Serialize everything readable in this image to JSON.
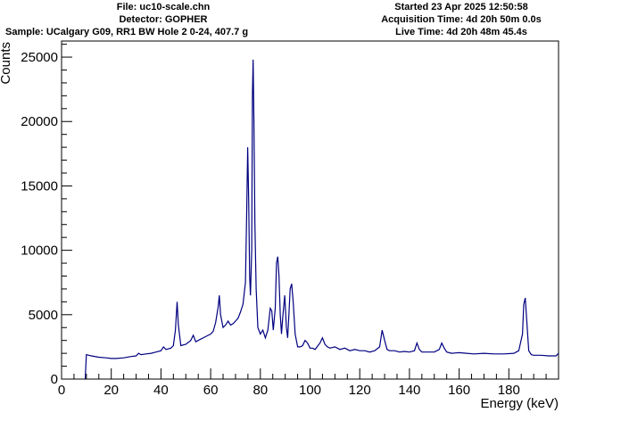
{
  "header": {
    "file": "File: uc10-scale.chn",
    "detector": "Detector: GOPHER",
    "sample": "Sample: UCalgary G09, RR1 BW Hole 2 0-24, 407.7 g",
    "started": "Started 23 Apr 2025 12:50:58",
    "acquisition": "Acquisition Time: 4d 20h 50m 0.0s",
    "live": "Live Time: 4d 20h 48m 45.4s"
  },
  "colors": {
    "series": "#000080",
    "frame": "#000000",
    "background": "#ffffff"
  },
  "chart_data": {
    "type": "line",
    "title": "",
    "xlabel": "Energy (keV)",
    "ylabel": "Counts",
    "xlim": [
      0,
      200
    ],
    "ylim": [
      0,
      26250
    ],
    "grid": false,
    "x_ticks": [
      0,
      20,
      40,
      60,
      80,
      100,
      120,
      140,
      160,
      180
    ],
    "y_ticks": [
      0,
      5000,
      10000,
      15000,
      20000,
      25000
    ],
    "x_tick_labels": [
      "0",
      "20",
      "40",
      "60",
      "80",
      "100",
      "120",
      "140",
      "160",
      "180"
    ],
    "y_tick_labels": [
      "0",
      "5000",
      "10000",
      "15000",
      "20000",
      "25000"
    ],
    "series": [
      {
        "x": [
          9.5,
          10,
          12,
          15,
          18,
          20,
          22,
          25,
          28,
          30,
          31,
          32,
          34,
          36,
          38,
          40,
          41,
          42,
          44,
          45,
          45.8,
          46.5,
          47,
          48,
          50,
          52,
          53,
          54,
          56,
          58,
          60,
          61,
          62,
          63,
          63.5,
          64,
          65,
          66,
          67,
          68,
          69,
          70,
          71,
          72,
          73,
          74,
          74.5,
          74.9,
          75.3,
          75.7,
          76,
          76.5,
          76.8,
          77.1,
          77.4,
          77.8,
          78.3,
          79,
          80,
          81,
          82,
          83,
          84,
          84.6,
          85.2,
          86,
          86.5,
          87,
          87.5,
          88,
          88.5,
          89,
          89.8,
          90.5,
          91,
          91.5,
          92,
          92.6,
          93.2,
          94,
          95,
          96,
          97,
          98,
          99,
          100,
          101,
          102,
          104,
          105,
          106,
          107,
          108,
          110,
          112,
          114,
          116,
          118,
          120,
          122,
          124,
          126,
          128,
          129,
          130,
          131,
          132,
          134,
          136,
          138,
          140,
          142,
          143,
          144,
          145,
          148,
          150,
          152,
          153,
          154,
          155,
          157,
          160,
          163,
          166,
          170,
          174,
          178,
          182,
          184,
          185.5,
          186,
          186.6,
          187.2,
          188,
          189,
          190,
          193,
          196,
          199,
          200
        ],
        "y": [
          0,
          1900,
          1800,
          1700,
          1650,
          1600,
          1600,
          1650,
          1750,
          1800,
          2000,
          1900,
          1950,
          2000,
          2100,
          2200,
          2500,
          2300,
          2400,
          2600,
          3800,
          6000,
          4200,
          2600,
          2700,
          3000,
          3400,
          2900,
          3100,
          3300,
          3500,
          3700,
          4400,
          5600,
          6500,
          5000,
          4000,
          4200,
          4500,
          4200,
          4300,
          4500,
          4700,
          5200,
          5800,
          7500,
          13000,
          18000,
          14000,
          8000,
          6500,
          10000,
          22000,
          24800,
          20000,
          12000,
          7000,
          4000,
          3500,
          3800,
          3200,
          3800,
          5500,
          5300,
          3800,
          5500,
          9000,
          9500,
          8000,
          5000,
          3500,
          4800,
          6500,
          4000,
          3200,
          5000,
          7000,
          7400,
          6000,
          3500,
          2500,
          2500,
          2600,
          3000,
          2800,
          2400,
          2400,
          2300,
          2800,
          3200,
          2700,
          2500,
          2400,
          2500,
          2300,
          2400,
          2200,
          2300,
          2200,
          2200,
          2100,
          2200,
          2500,
          3800,
          3000,
          2300,
          2200,
          2200,
          2100,
          2150,
          2100,
          2200,
          2800,
          2300,
          2100,
          2100,
          2100,
          2300,
          2800,
          2400,
          2100,
          2000,
          2050,
          2000,
          1950,
          2000,
          1950,
          1950,
          2000,
          2200,
          3500,
          5800,
          6300,
          4500,
          2200,
          1900,
          1850,
          1850,
          1800,
          1800,
          2000
        ]
      }
    ]
  }
}
